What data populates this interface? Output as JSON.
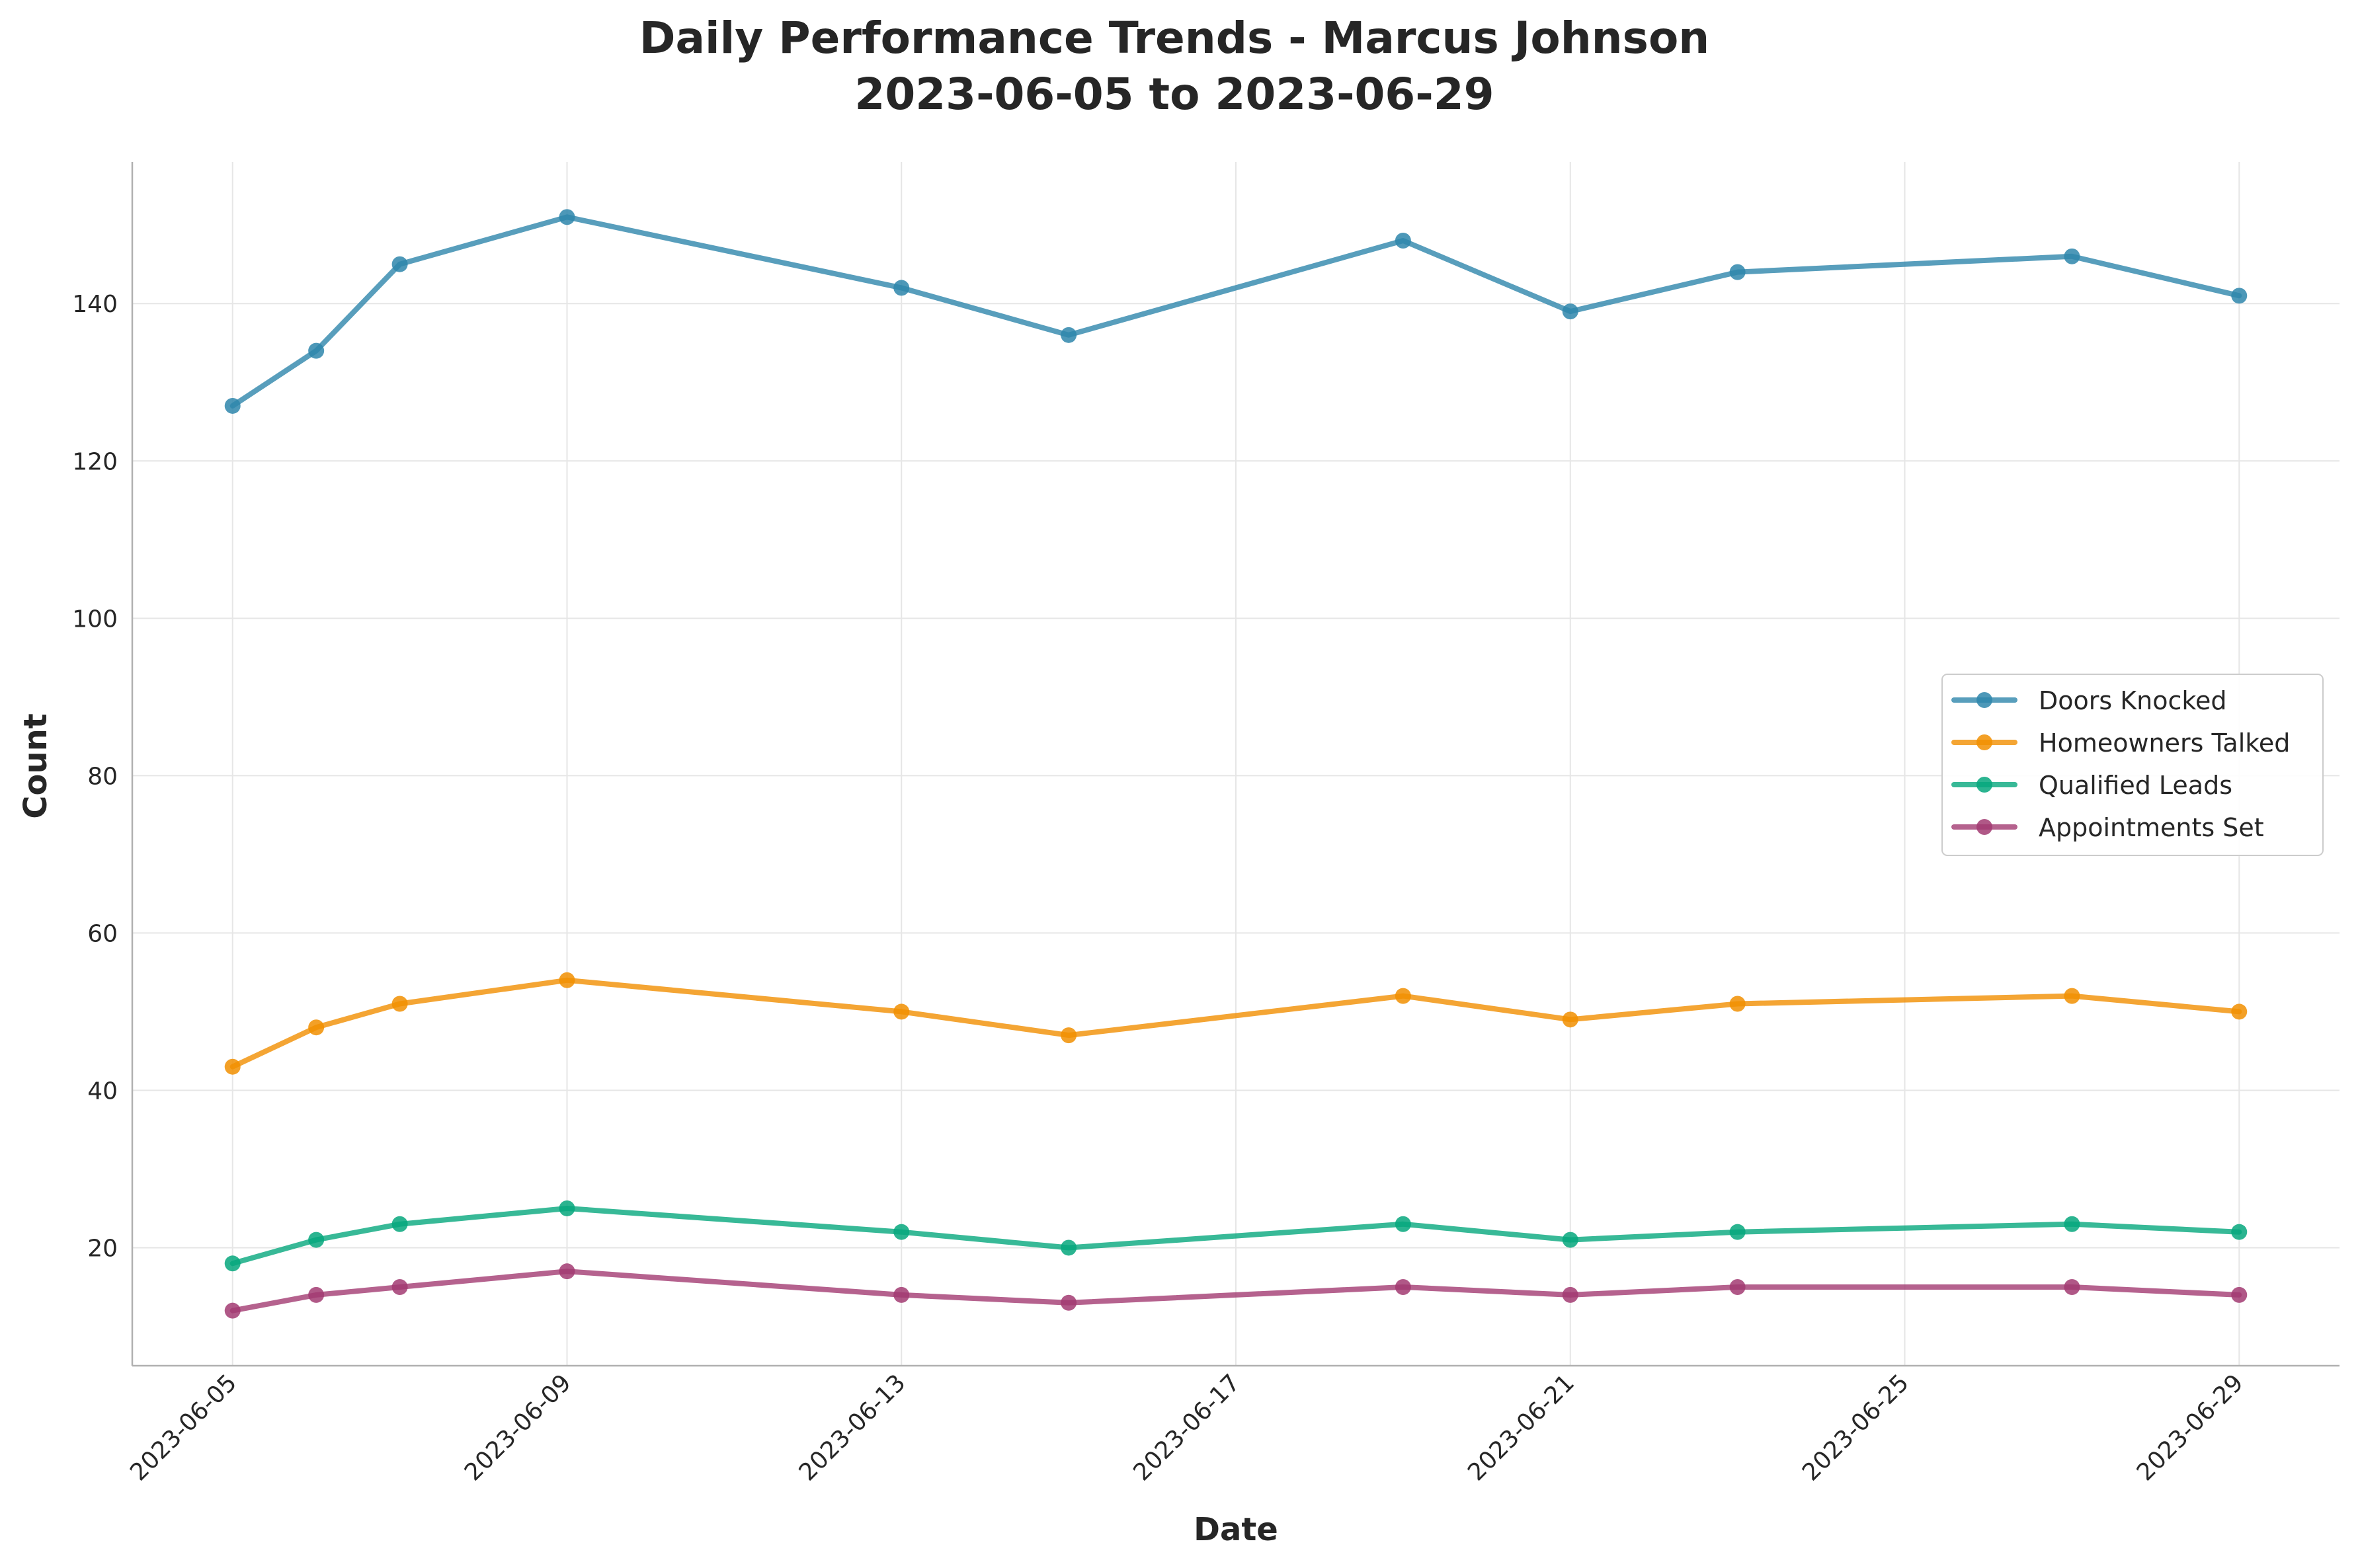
{
  "chart_data": {
    "type": "line",
    "title": "Daily Performance Trends - Marcus Johnson",
    "subtitle": "2023-06-05 to 2023-06-29",
    "xlabel": "Date",
    "ylabel": "Count",
    "x": [
      "2023-06-05",
      "2023-06-06",
      "2023-06-07",
      "2023-06-09",
      "2023-06-13",
      "2023-06-15",
      "2023-06-19",
      "2023-06-21",
      "2023-06-23",
      "2023-06-27",
      "2023-06-29"
    ],
    "xlim": [
      "2023-06-03 19:12",
      "2023-06-30 04:48"
    ],
    "ylim": [
      5,
      158
    ],
    "xticks": [
      "2023-06-05",
      "2023-06-09",
      "2023-06-13",
      "2023-06-17",
      "2023-06-21",
      "2023-06-25",
      "2023-06-29"
    ],
    "yticks": [
      20,
      40,
      60,
      80,
      100,
      120,
      140
    ],
    "grid": true,
    "legend_position": "center-right",
    "series": [
      {
        "name": "Doors Knocked",
        "color": "#2E86AB",
        "values": [
          127,
          134,
          145,
          151,
          142,
          136,
          148,
          139,
          144,
          146,
          141
        ]
      },
      {
        "name": "Homeowners Talked",
        "color": "#F18F01",
        "values": [
          43,
          48,
          51,
          54,
          50,
          47,
          52,
          49,
          51,
          52,
          50
        ]
      },
      {
        "name": "Qualified Leads",
        "color": "#06A77D",
        "values": [
          18,
          21,
          23,
          25,
          22,
          20,
          23,
          21,
          22,
          23,
          22
        ]
      },
      {
        "name": "Appointments Set",
        "color": "#A23B72",
        "values": [
          12,
          14,
          15,
          17,
          14,
          13,
          15,
          14,
          15,
          15,
          14
        ]
      }
    ]
  }
}
